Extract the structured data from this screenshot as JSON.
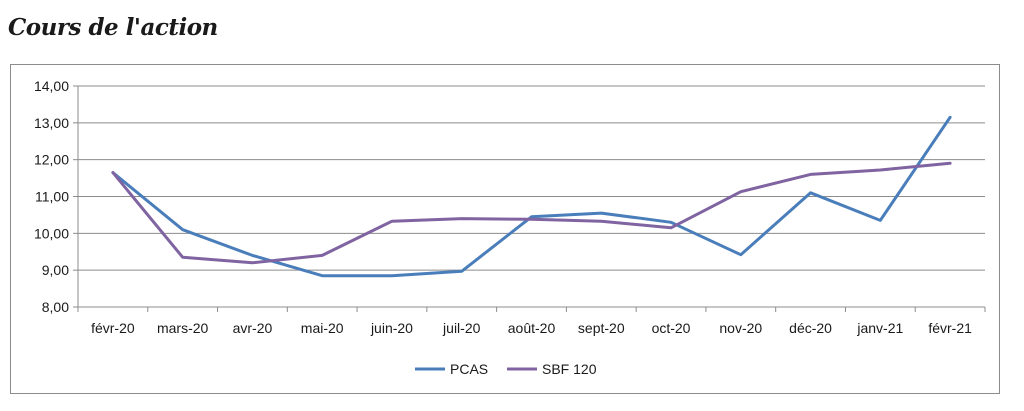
{
  "chart_data": {
    "type": "line",
    "title": "Cours de l'action",
    "xlabel": "",
    "ylabel": "",
    "categories": [
      "févr-20",
      "mars-20",
      "avr-20",
      "mai-20",
      "juin-20",
      "juil-20",
      "août-20",
      "sept-20",
      "oct-20",
      "nov-20",
      "déc-20",
      "janv-21",
      "févr-21"
    ],
    "ylim": [
      8,
      14
    ],
    "yticks": [
      8,
      9,
      10,
      11,
      12,
      13,
      14
    ],
    "ytick_labels": [
      "8,00",
      "9,00",
      "10,00",
      "11,00",
      "12,00",
      "13,00",
      "14,00"
    ],
    "grid": true,
    "legend_position": "bottom",
    "series": [
      {
        "name": "PCAS",
        "color": "#4a7ebb",
        "values": [
          11.65,
          10.1,
          9.4,
          8.85,
          8.85,
          8.97,
          10.45,
          10.55,
          10.3,
          9.42,
          11.1,
          10.35,
          13.15
        ]
      },
      {
        "name": "SBF 120",
        "color": "#8064a2",
        "values": [
          11.65,
          9.35,
          9.2,
          9.4,
          10.33,
          10.4,
          10.38,
          10.33,
          10.15,
          11.13,
          11.6,
          11.72,
          11.9
        ]
      }
    ]
  }
}
